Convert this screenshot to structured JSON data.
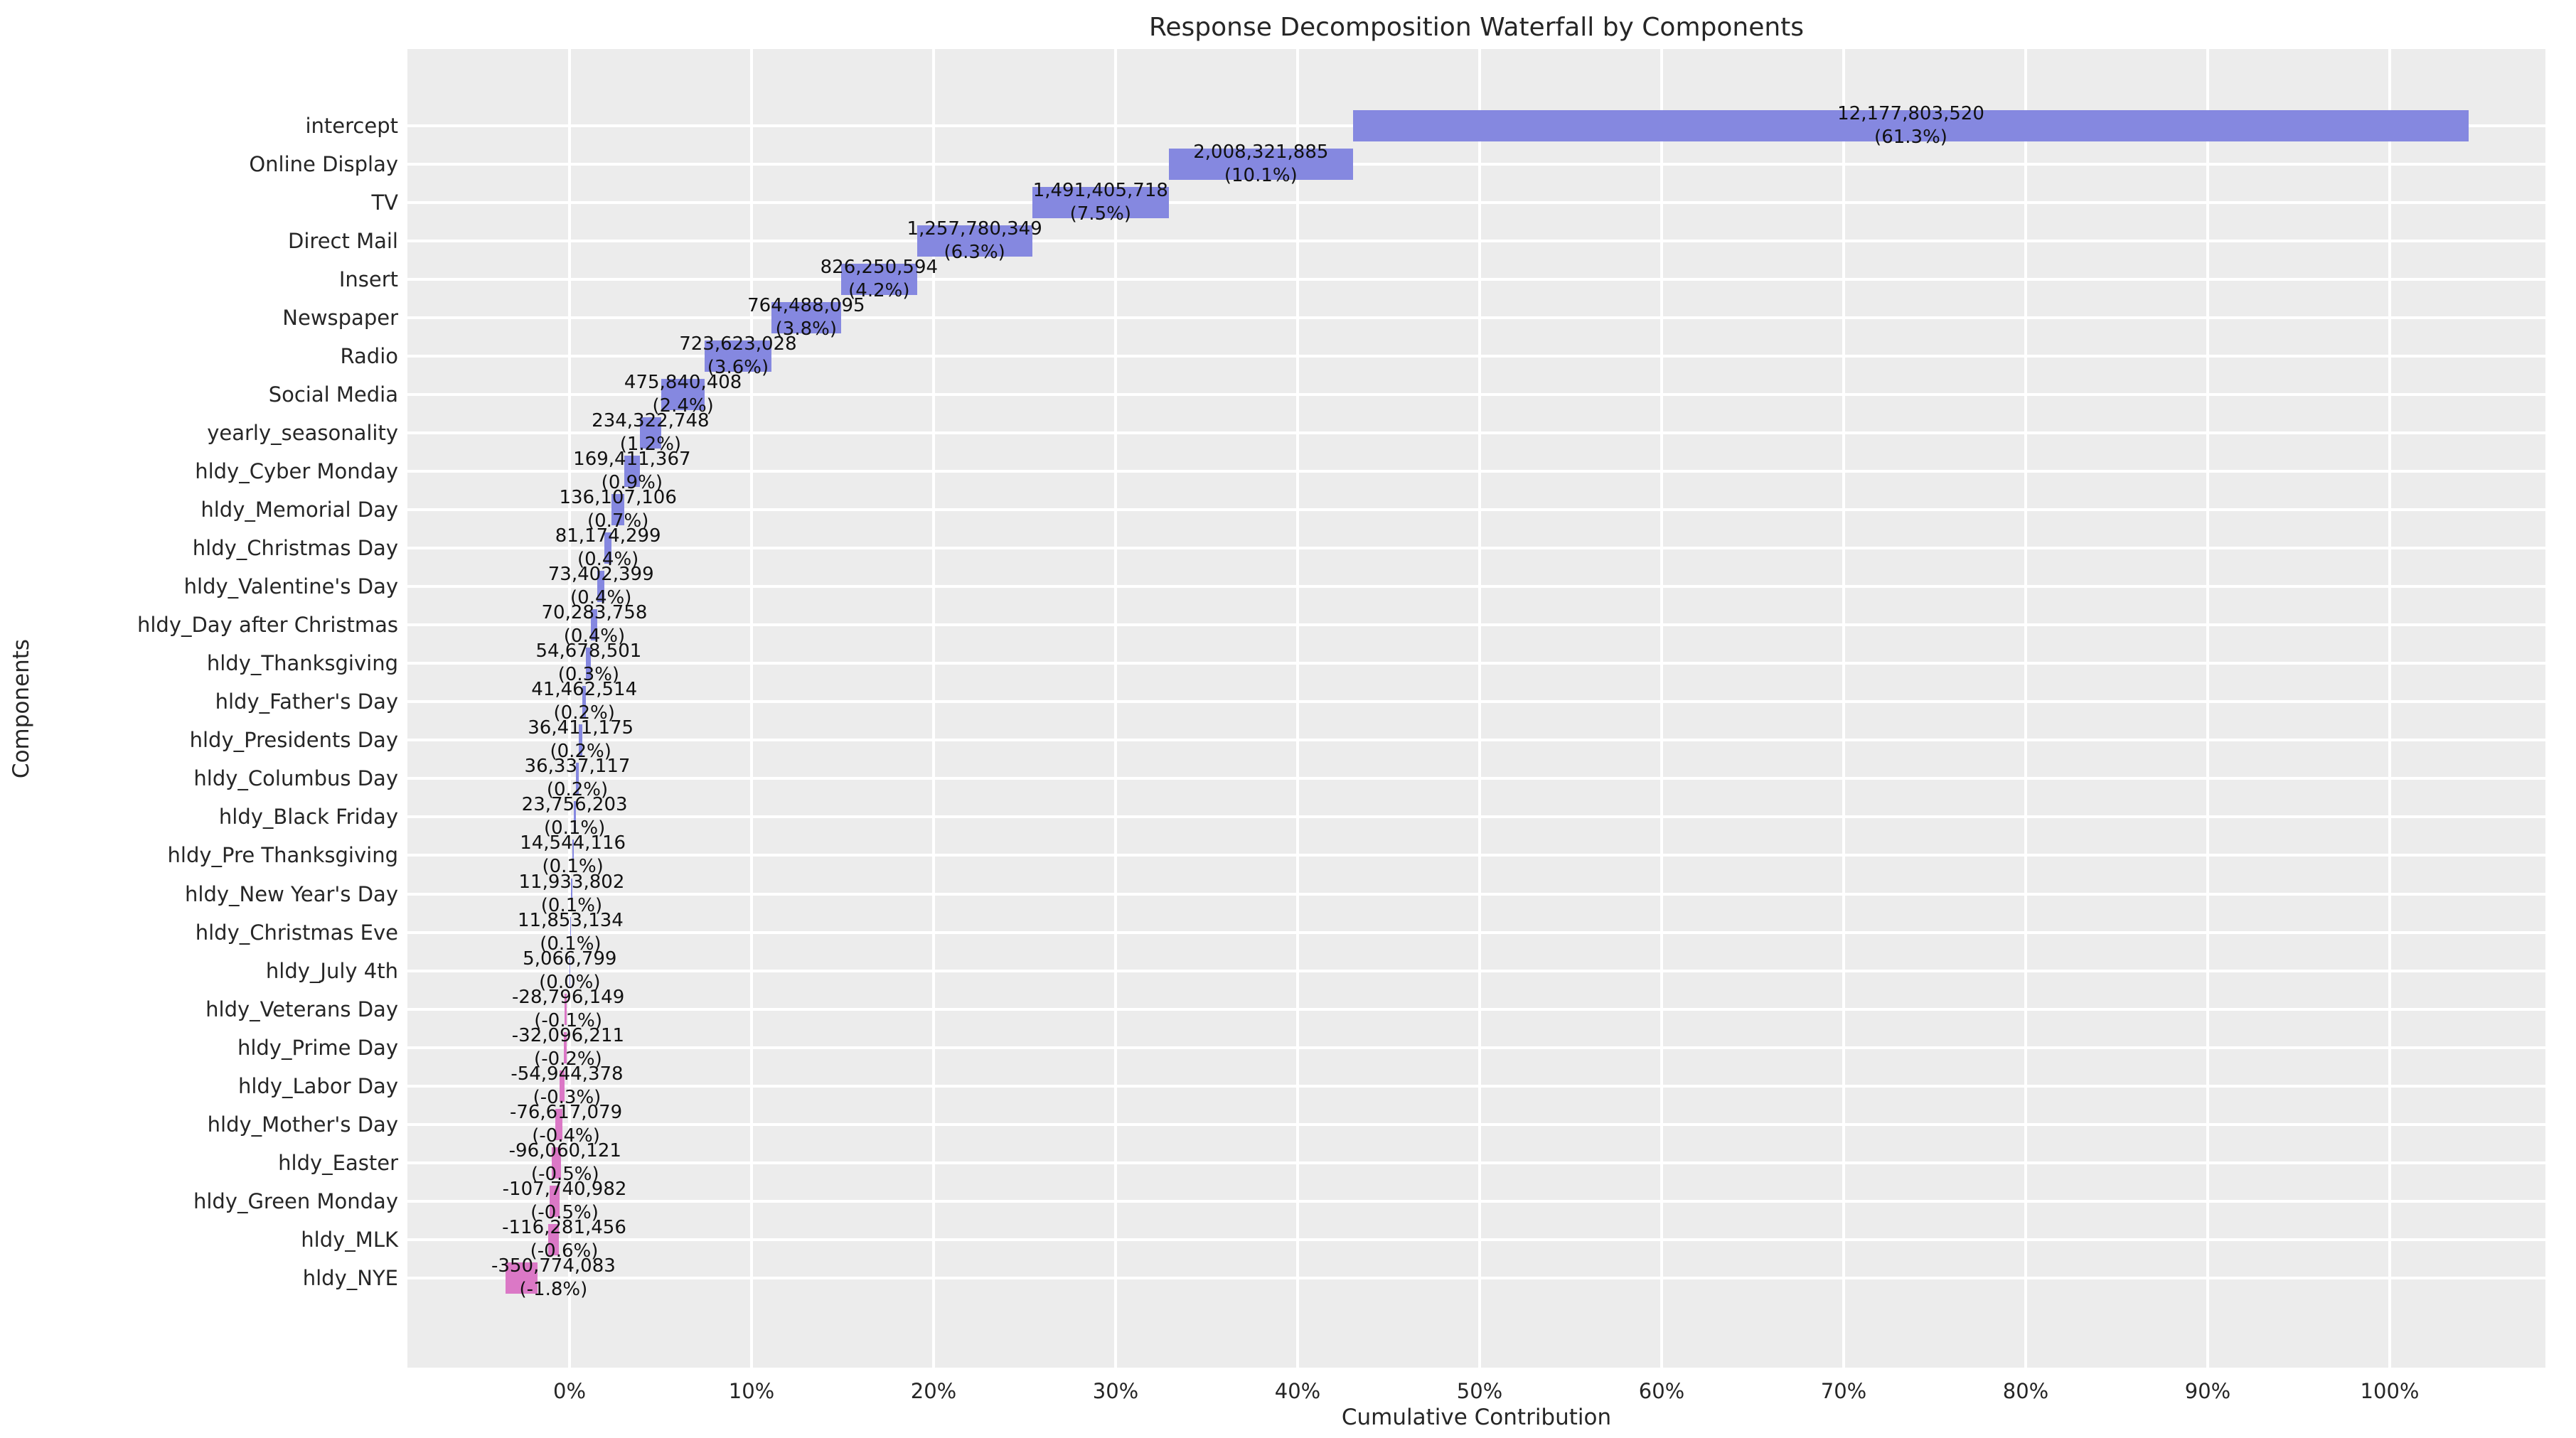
{
  "chart_data": {
    "type": "bar",
    "subtype": "horizontal-waterfall",
    "title": "Response Decomposition Waterfall by Components",
    "xlabel": "Cumulative Contribution",
    "ylabel": "Components",
    "legend": "none",
    "grid": "on",
    "x_axis_range_pct": [
      -8.9,
      108.6
    ],
    "x_tick_values": [
      0,
      10,
      20,
      30,
      40,
      50,
      60,
      70,
      80,
      90,
      100
    ],
    "x_tick_labels": [
      "0%",
      "10%",
      "20%",
      "30%",
      "40%",
      "50%",
      "60%",
      "70%",
      "80%",
      "90%",
      "100%"
    ],
    "categories": [
      "intercept",
      "Online Display",
      "TV",
      "Direct Mail",
      "Insert",
      "Newspaper",
      "Radio",
      "Social Media",
      "yearly_seasonality",
      "hldy_Cyber Monday",
      "hldy_Memorial Day",
      "hldy_Christmas Day",
      "hldy_Valentine's Day",
      "hldy_Day after Christmas",
      "hldy_Thanksgiving",
      "hldy_Father's Day",
      "hldy_Presidents Day",
      "hldy_Columbus Day",
      "hldy_Black Friday",
      "hldy_Pre Thanksgiving",
      "hldy_New Year's Day",
      "hldy_Christmas Eve",
      "hldy_July 4th",
      "hldy_Veterans Day",
      "hldy_Prime Day",
      "hldy_Labor Day",
      "hldy_Mother's Day",
      "hldy_Easter",
      "hldy_Green Monday",
      "hldy_MLK",
      "hldy_NYE"
    ],
    "values": [
      12177803520,
      2008321885,
      1491405718,
      1257780349,
      826250594,
      764488095,
      723623028,
      475840408,
      234322748,
      169411367,
      136107106,
      81174299,
      73402399,
      70283758,
      54678501,
      41462514,
      36411175,
      36337117,
      23756203,
      14544116,
      11933802,
      11853134,
      5066799,
      -28796149,
      -32096211,
      -54944378,
      -76617079,
      -96060121,
      -107740982,
      -116281456,
      -350774083
    ],
    "value_labels": [
      "12,177,803,520",
      "2,008,321,885",
      "1,491,405,718",
      "1,257,780,349",
      "826,250,594",
      "764,488,095",
      "723,623,028",
      "475,840,408",
      "234,322,748",
      "169,411,367",
      "136,107,106",
      "81,174,299",
      "73,402,399",
      "70,283,758",
      "54,678,501",
      "41,462,514",
      "36,411,175",
      "36,337,117",
      "23,756,203",
      "14,544,116",
      "11,933,802",
      "11,853,134",
      "5,066,799",
      "-28,796,149",
      "-32,096,211",
      "-54,944,378",
      "-76,617,079",
      "-96,060,121",
      "-107,740,982",
      "-116,281,456",
      "-350,774,083"
    ],
    "pct_labels": [
      "(61.3%)",
      "(10.1%)",
      "(7.5%)",
      "(6.3%)",
      "(4.2%)",
      "(3.8%)",
      "(3.6%)",
      "(2.4%)",
      "(1.2%)",
      "(0.9%)",
      "(0.7%)",
      "(0.4%)",
      "(0.4%)",
      "(0.4%)",
      "(0.3%)",
      "(0.2%)",
      "(0.2%)",
      "(0.2%)",
      "(0.1%)",
      "(0.1%)",
      "(0.1%)",
      "(0.1%)",
      "(0.0%)",
      "(-0.1%)",
      "(-0.2%)",
      "(-0.3%)",
      "(-0.4%)",
      "(-0.5%)",
      "(-0.5%)",
      "(-0.6%)",
      "(-1.8%)"
    ],
    "colors": {
      "positive_bar": "#8588e0",
      "negative_bar": "#db78c6",
      "plot_background": "#ececec",
      "gridline": "#ffffff",
      "text": "#262626",
      "figure_background": "#ffffff"
    }
  }
}
